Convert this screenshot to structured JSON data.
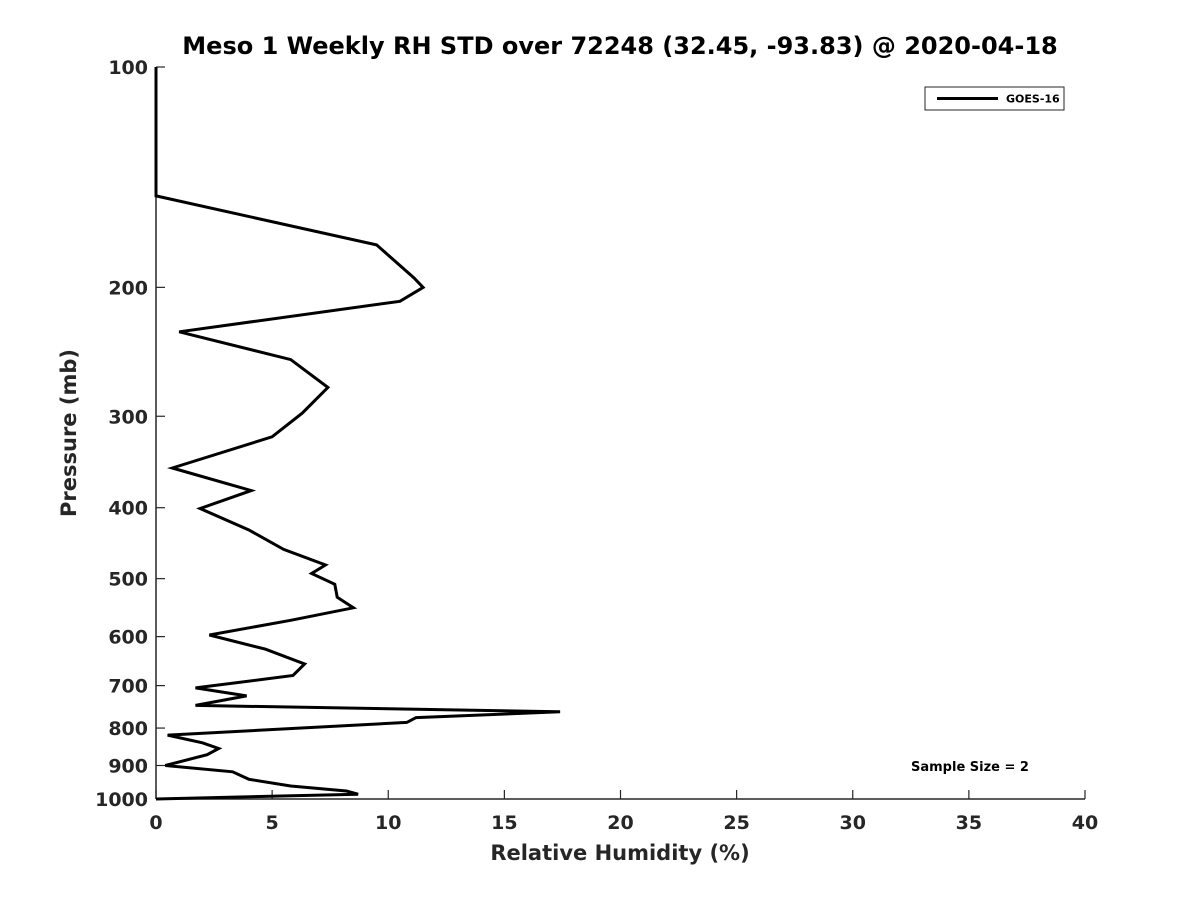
{
  "chart_data": {
    "type": "line",
    "title": "Meso 1 Weekly RH STD over 72248 (32.45, -93.83) @ 2020-04-18",
    "xlabel": "Relative Humidity (%)",
    "ylabel": "Pressure (mb)",
    "xlim": [
      0,
      40
    ],
    "ylim": [
      100,
      1000
    ],
    "y_scale": "log",
    "y_reversed": true,
    "x_ticks": [
      0,
      5,
      10,
      15,
      20,
      25,
      30,
      35,
      40
    ],
    "y_ticks": [
      100,
      200,
      300,
      400,
      500,
      600,
      700,
      800,
      900,
      1000
    ],
    "grid": false,
    "legend_position": "top-right",
    "annotation": "Sample Size = 2",
    "series": [
      {
        "name": "GOES-16",
        "color": "#000000",
        "x": [
          0,
          0,
          9.5,
          11.1,
          11.5,
          10.5,
          1.0,
          5.8,
          7.4,
          6.3,
          5.0,
          0.7,
          4.1,
          1.9,
          4.0,
          5.5,
          7.3,
          6.7,
          7.7,
          7.8,
          8.5,
          5.8,
          2.3,
          4.7,
          6.4,
          5.9,
          1.7,
          3.9,
          1.7,
          17.4,
          11.2,
          10.8,
          0.5,
          2.0,
          2.7,
          2.2,
          0.4,
          3.3,
          4.0,
          5.8,
          8.2,
          8.7,
          0
        ],
        "y": [
          100,
          150,
          175,
          194,
          200,
          209,
          230,
          251,
          274,
          297,
          320,
          353,
          379,
          401,
          429,
          456,
          479,
          492,
          509,
          530,
          548,
          570,
          597,
          624,
          654,
          678,
          705,
          723,
          745,
          760,
          774,
          786,
          818,
          838,
          853,
          870,
          900,
          918,
          940,
          960,
          975,
          985,
          1000
        ]
      }
    ]
  }
}
